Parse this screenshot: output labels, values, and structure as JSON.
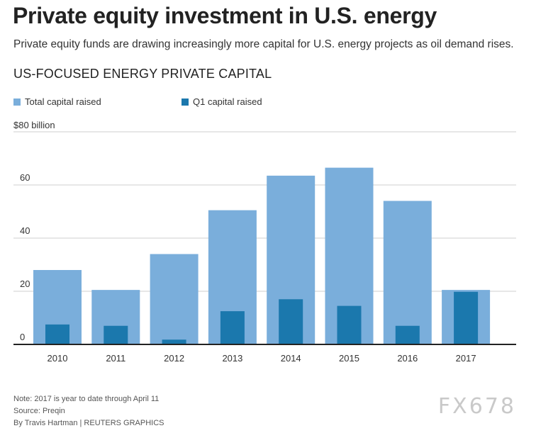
{
  "header": {
    "title": "Private equity investment in U.S. energy",
    "subtitle": "Private equity funds are drawing increasingly more capital for U.S. energy projects as oil demand rises.",
    "chart_title": "US-FOCUSED ENERGY PRIVATE CAPITAL"
  },
  "colors": {
    "total": "#7aaedb",
    "q1": "#1b78ad",
    "grid": "#cfcfcf",
    "axis": "#222222"
  },
  "chart_data": {
    "type": "bar",
    "title": "US-FOCUSED ENERGY PRIVATE CAPITAL",
    "categories": [
      "2010",
      "2011",
      "2012",
      "2013",
      "2014",
      "2015",
      "2016",
      "2017"
    ],
    "series": [
      {
        "name": "Total capital raised",
        "values": [
          28,
          20.5,
          34,
          50.5,
          63.5,
          66.5,
          54,
          20.5
        ]
      },
      {
        "name": "Q1 capital raised",
        "values": [
          7.5,
          7,
          1.8,
          12.5,
          17,
          14.5,
          7,
          19.8
        ]
      }
    ],
    "yticks": [
      0,
      20,
      40,
      60
    ],
    "ytick_labels": [
      "0",
      "20",
      "40",
      "60"
    ],
    "y_top_label": "$80 billion",
    "ylim": [
      0,
      80
    ],
    "xlabel": "",
    "ylabel": "",
    "legend_position": "top-left"
  },
  "footer": {
    "note": "Note: 2017 is year to date through April 11",
    "source": "Source: Preqin",
    "credit": "By Travis Hartman | REUTERS GRAPHICS"
  },
  "watermark": "FX678"
}
